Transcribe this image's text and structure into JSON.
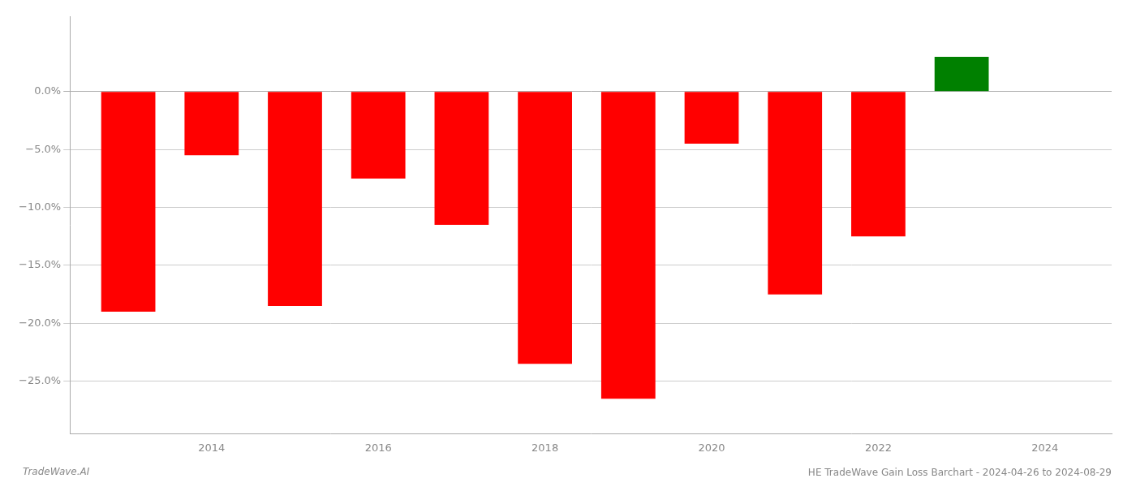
{
  "chart_data": {
    "type": "bar",
    "title": "HE TradeWave Gain Loss Barchart - 2024-04-26 to 2024-08-29",
    "annotations": [
      "TradeWave.AI"
    ],
    "x": [
      2013,
      2014,
      2015,
      2016,
      2017,
      2018,
      2019,
      2020,
      2021,
      2022,
      2023
    ],
    "values": [
      -0.19,
      -0.055,
      -0.185,
      -0.075,
      -0.115,
      -0.235,
      -0.265,
      -0.045,
      -0.175,
      -0.125,
      0.03
    ],
    "colors": [
      "#ff0000",
      "#ff0000",
      "#ff0000",
      "#ff0000",
      "#ff0000",
      "#ff0000",
      "#ff0000",
      "#ff0000",
      "#ff0000",
      "#ff0000",
      "#008000"
    ],
    "xlim": [
      2012.3,
      2024.8
    ],
    "xticks": [
      2014,
      2016,
      2018,
      2020,
      2022,
      2024
    ],
    "ylim": [
      -0.295,
      0.065
    ],
    "yticks": [
      {
        "value": 0.0,
        "label": "0.0%"
      },
      {
        "value": -0.05,
        "label": "−5.0%"
      },
      {
        "value": -0.1,
        "label": "−10.0%"
      },
      {
        "value": -0.15,
        "label": "−15.0%"
      },
      {
        "value": -0.2,
        "label": "−20.0%"
      },
      {
        "value": -0.25,
        "label": "−25.0%"
      }
    ],
    "grid": true
  }
}
